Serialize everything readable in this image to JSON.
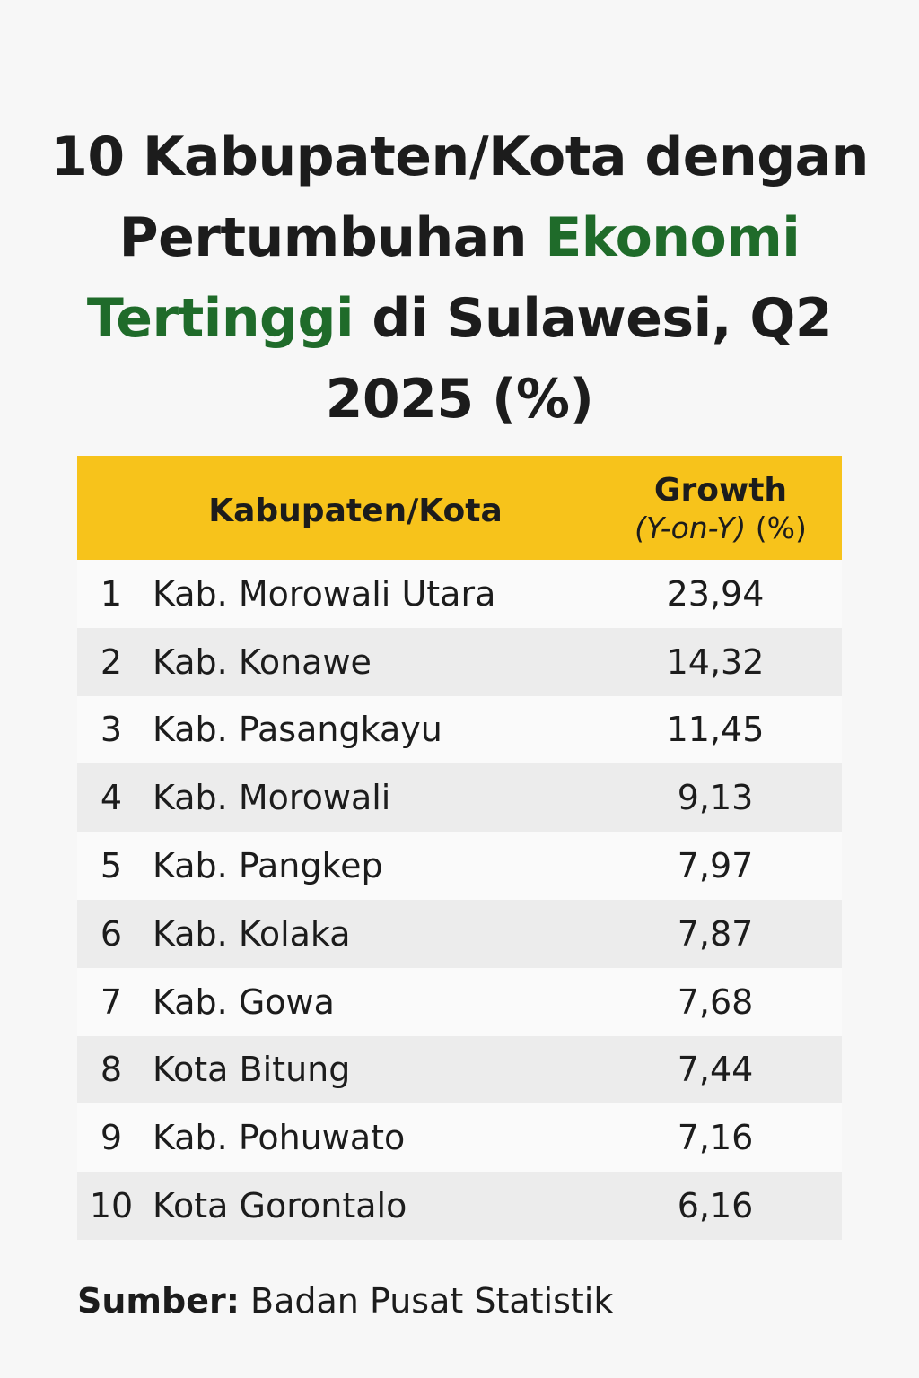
{
  "title": {
    "part1": "10 Kabupaten/Kota dengan Pertumbuhan ",
    "highlight": "Ekonomi Tertinggi",
    "part2": " di Sulawesi, Q2 2025 (%)",
    "highlight_color": "#1f6b2a"
  },
  "table": {
    "header_color": "#f7c31b",
    "col_name": "Kabupaten/Kota",
    "col_growth_line1": "Growth",
    "col_growth_yoy": "(Y-on-Y)",
    "col_growth_pct": " (%)"
  },
  "chart_data": {
    "type": "table",
    "columns": [
      "",
      "Kabupaten/Kota",
      "Growth (Y-on-Y) (%)"
    ],
    "rows": [
      {
        "rank": "1",
        "name": "Kab. Morowali Utara",
        "value": "23,94"
      },
      {
        "rank": "2",
        "name": "Kab. Konawe",
        "value": "14,32"
      },
      {
        "rank": "3",
        "name": "Kab. Pasangkayu",
        "value": "11,45"
      },
      {
        "rank": "4",
        "name": "Kab. Morowali",
        "value": "9,13"
      },
      {
        "rank": "5",
        "name": "Kab. Pangkep",
        "value": "7,97"
      },
      {
        "rank": "6",
        "name": "Kab. Kolaka",
        "value": "7,87"
      },
      {
        "rank": "7",
        "name": "Kab. Gowa",
        "value": "7,68"
      },
      {
        "rank": "8",
        "name": "Kota Bitung",
        "value": "7,44"
      },
      {
        "rank": "9",
        "name": "Kab. Pohuwato",
        "value": "7,16"
      },
      {
        "rank": "10",
        "name": "Kota Gorontalo",
        "value": "6,16"
      }
    ]
  },
  "source": {
    "label": "Sumber:",
    "text": " Badan Pusat Statistik"
  }
}
